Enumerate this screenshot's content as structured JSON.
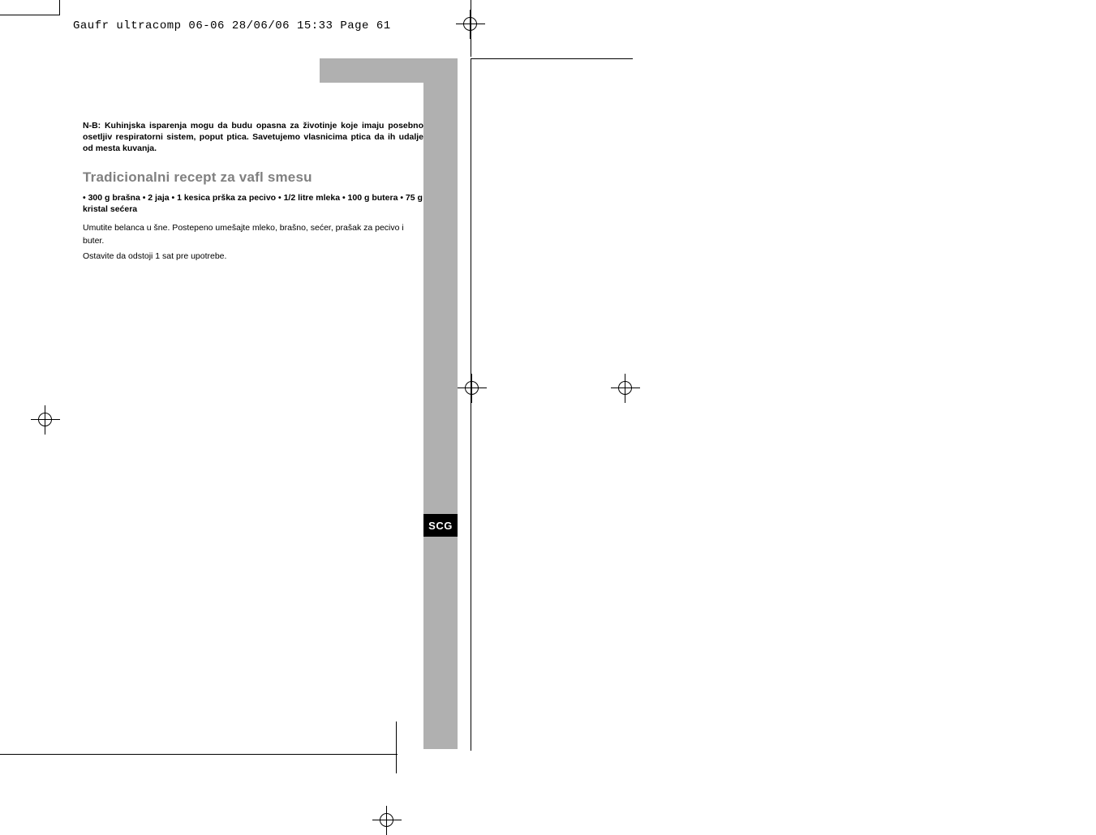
{
  "slug": "Gaufr ultracomp 06-06  28/06/06  15:33  Page 61",
  "note": "N-B: Kuhinjska isparenja mogu da budu opasna za životinje koje imaju posebno osetljiv respiratorni sistem, poput ptica. Savetujemo vlasnicima ptica da ih udalje od mesta kuvanja.",
  "heading": "Tradicionalni recept za vafl smesu",
  "ingredients": "• 300 g brašna • 2 jaja • 1 kesica prška za pecivo • 1/2 litre mleka • 100 g butera • 75 g kristal sećera",
  "para1": "Umutite belanca u šne. Postepeno umešajte mleko, brašno, sećer, prašak za pecivo i buter.",
  "para2": "Ostavite da odstoji 1 sat pre upotrebe.",
  "lang_badge": "SCG",
  "colors": {
    "grey_bar": "#b0b0b0",
    "heading_grey": "#808080",
    "badge_bg": "#000000",
    "badge_text": "#ffffff",
    "text": "#000000",
    "background": "#ffffff"
  }
}
